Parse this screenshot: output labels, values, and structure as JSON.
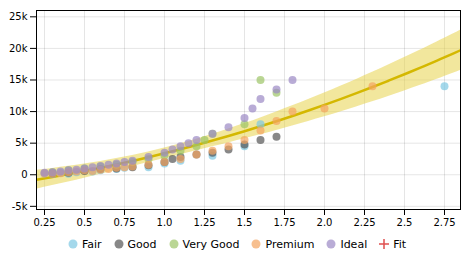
{
  "chart_data": {
    "type": "scatter",
    "xlim": [
      0.2,
      2.85
    ],
    "ylim": [
      -5500,
      26000
    ],
    "xticks": [
      0.25,
      0.5,
      0.75,
      {
        "value": 1,
        "label": "1.0"
      },
      1.25,
      1.5,
      1.75,
      {
        "value": 2,
        "label": "2.0"
      },
      2.25,
      2.5,
      2.75
    ],
    "yticks": [
      {
        "value": -5000,
        "label": "-5k"
      },
      0,
      {
        "value": 5000,
        "label": "5k"
      },
      {
        "value": 10000,
        "label": "10k"
      },
      {
        "value": 15000,
        "label": "15k"
      },
      {
        "value": 20000,
        "label": "20k"
      },
      {
        "value": 25000,
        "label": "25k"
      }
    ],
    "grid": true,
    "legend": "bottom",
    "series": [
      {
        "name": "Fair",
        "color": "#7ec8e3",
        "marker": "o",
        "x": [
          0.25,
          0.3,
          0.35,
          0.4,
          0.45,
          0.5,
          0.55,
          0.6,
          0.7,
          0.75,
          0.8,
          0.9,
          1.0,
          1.1,
          1.3,
          1.5,
          1.6,
          2.75
        ],
        "values": [
          200,
          100,
          300,
          150,
          400,
          800,
          500,
          700,
          900,
          1100,
          1300,
          1200,
          1800,
          2200,
          3000,
          4500,
          8000,
          14000
        ]
      },
      {
        "name": "Good",
        "color": "#555555",
        "marker": "o",
        "x": [
          0.3,
          0.4,
          0.5,
          0.6,
          0.7,
          0.8,
          0.9,
          1.0,
          1.05,
          1.1,
          1.2,
          1.3,
          1.4,
          1.5,
          1.6,
          1.7
        ],
        "values": [
          200,
          300,
          600,
          900,
          1000,
          1200,
          1500,
          2000,
          2500,
          2800,
          3200,
          3500,
          4000,
          4800,
          5500,
          6000
        ]
      },
      {
        "name": "Very Good",
        "color": "#9dc467",
        "marker": "o",
        "x": [
          0.3,
          0.4,
          0.5,
          0.6,
          0.7,
          0.8,
          0.9,
          1.0,
          1.1,
          1.2,
          1.25,
          1.3,
          1.5,
          1.6,
          1.7
        ],
        "values": [
          400,
          700,
          1000,
          1300,
          1600,
          2000,
          2500,
          3000,
          3800,
          4500,
          5500,
          6500,
          8000,
          15000,
          13000
        ]
      },
      {
        "name": "Premium",
        "color": "#f4a460",
        "marker": "o",
        "x": [
          0.25,
          0.3,
          0.35,
          0.4,
          0.45,
          0.5,
          0.55,
          0.6,
          0.65,
          0.7,
          0.75,
          0.8,
          0.9,
          1.0,
          1.1,
          1.2,
          1.3,
          1.4,
          1.5,
          1.6,
          1.7,
          1.8,
          2.0,
          2.3
        ],
        "values": [
          200,
          150,
          250,
          400,
          500,
          700,
          600,
          800,
          900,
          1100,
          1200,
          1300,
          1600,
          2000,
          2500,
          3200,
          3800,
          4500,
          5500,
          7000,
          8500,
          10000,
          10500,
          14000
        ]
      },
      {
        "name": "Ideal",
        "color": "#9b89c4",
        "marker": "o",
        "x": [
          0.25,
          0.3,
          0.35,
          0.4,
          0.45,
          0.5,
          0.55,
          0.6,
          0.65,
          0.7,
          0.75,
          0.8,
          0.9,
          1.0,
          1.05,
          1.1,
          1.15,
          1.2,
          1.3,
          1.4,
          1.5,
          1.55,
          1.6,
          1.7,
          1.8
        ],
        "values": [
          300,
          400,
          500,
          700,
          800,
          1000,
          1200,
          1400,
          1600,
          1800,
          2000,
          2200,
          2800,
          3500,
          4000,
          4500,
          5000,
          5500,
          6500,
          7500,
          9000,
          10500,
          12000,
          13500,
          15000
        ]
      }
    ],
    "trend": {
      "name": "Fit",
      "type": "line",
      "color": "#d4b800",
      "band_color": "#e8d44d",
      "legend_color": "#e05050",
      "marker": "+",
      "x": [
        0.2,
        0.3,
        0.4,
        0.5,
        0.6,
        0.7,
        0.8,
        0.9,
        1.0,
        1.1,
        1.2,
        1.3,
        1.4,
        1.5,
        1.6,
        1.7,
        1.8,
        1.9,
        2.0,
        2.1,
        2.2,
        2.3,
        2.4,
        2.5,
        2.6,
        2.7,
        2.8,
        2.85
      ],
      "values": [
        -783,
        -356,
        99,
        581,
        1090,
        1626,
        2189,
        2779,
        3397,
        4041,
        4712,
        5411,
        6137,
        6890,
        7669,
        8476,
        9310,
        10172,
        11060,
        11975,
        12917,
        13887,
        14884,
        15907,
        16958,
        18036,
        19141,
        19703
      ],
      "lower": [
        -2277,
        -1717,
        -1137,
        -540,
        72,
        693,
        1319,
        1944,
        2566,
        3183,
        3798,
        4417,
        5044,
        5684,
        6341,
        7017,
        7714,
        8434,
        9177,
        9945,
        10738,
        11556,
        12399,
        13269,
        14164,
        15086,
        16034,
        16518
      ],
      "upper": [
        710,
        1006,
        1335,
        1701,
        2108,
        2559,
        3059,
        3614,
        4228,
        4899,
        5627,
        6405,
        7230,
        8095,
        8998,
        9936,
        10907,
        11909,
        12942,
        14005,
        15097,
        16218,
        17368,
        18546,
        19752,
        20986,
        22247,
        22888
      ]
    }
  }
}
